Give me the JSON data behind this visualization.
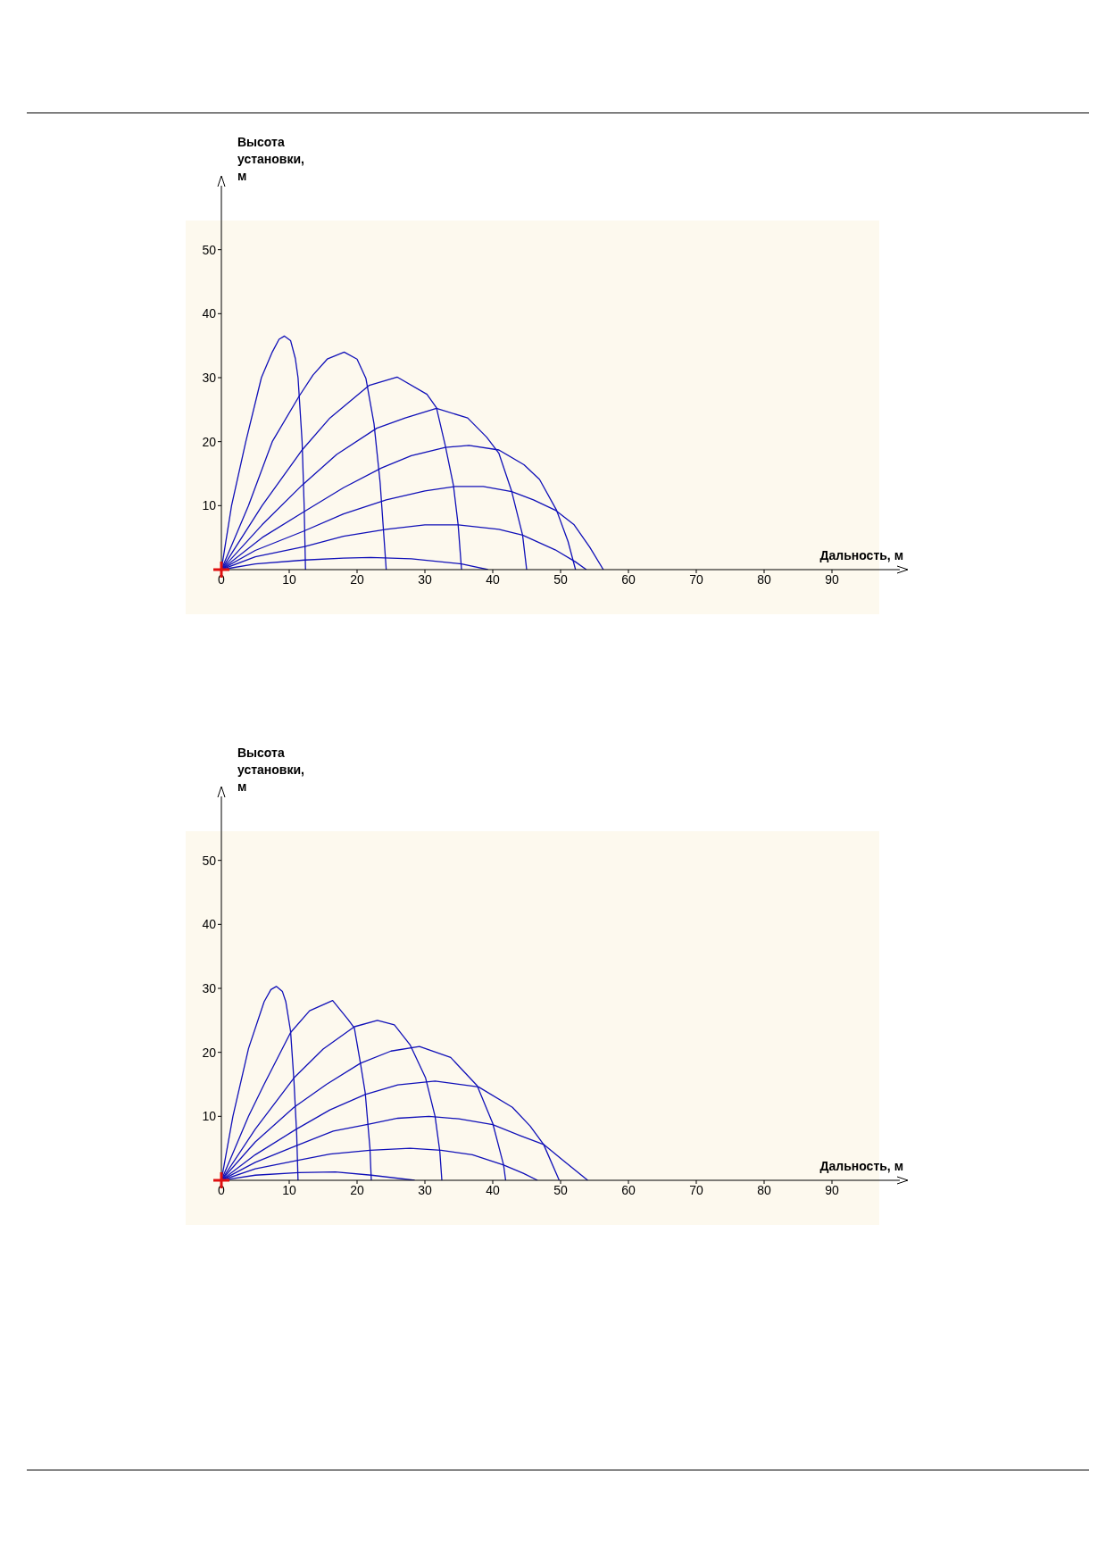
{
  "chart_data": [
    {
      "type": "line",
      "xlabel": "Дальность, м",
      "ylabel": "Высота установки, м",
      "xlim": [
        0,
        100
      ],
      "ylim": [
        0,
        60
      ],
      "xticks": [
        0,
        10,
        20,
        30,
        40,
        50,
        60,
        70,
        80,
        90
      ],
      "yticks": [
        10,
        20,
        30,
        40,
        50
      ],
      "series": [
        {
          "color": "#1010b8",
          "x": [
            0,
            1.5,
            3.6,
            5.9,
            7.5,
            8.5,
            9.3,
            10.2,
            10.9,
            11.3,
            11.9,
            12.2,
            12.4
          ],
          "values": [
            0,
            10,
            20,
            30,
            34,
            36,
            36.5,
            35.8,
            33,
            30,
            20,
            10,
            0
          ]
        },
        {
          "color": "#1010b8",
          "x": [
            0,
            4,
            7.5,
            11.4,
            13.5,
            15.6,
            18.1,
            20,
            21.3,
            22.5,
            23.4,
            24.3
          ],
          "values": [
            0,
            10,
            20,
            27,
            30.4,
            32.9,
            34,
            32.9,
            29.9,
            22.8,
            13.6,
            0
          ]
        },
        {
          "color": "#1010b8",
          "x": [
            0,
            6,
            11.9,
            16,
            21.8,
            25.9,
            30.3,
            31.7,
            33,
            34.2,
            34.9,
            35.4
          ],
          "values": [
            0,
            10,
            18.7,
            23.7,
            28.8,
            30.1,
            27.4,
            25.3,
            19.4,
            13.2,
            7,
            0
          ]
        },
        {
          "color": "#1010b8",
          "x": [
            0,
            6,
            11.9,
            17,
            22.9,
            27.1,
            31.7,
            36.3,
            39.1,
            40.9,
            42.8,
            44.4,
            45
          ],
          "values": [
            0,
            7,
            13.2,
            18,
            22.1,
            23.7,
            25.2,
            23.7,
            20.7,
            18.2,
            12.2,
            5.4,
            0
          ]
        },
        {
          "color": "#1010b8",
          "x": [
            0,
            6,
            12.1,
            18,
            23.6,
            28,
            33,
            36.5,
            40.9,
            44.6,
            46.9,
            49.4,
            51.1,
            52.2
          ],
          "values": [
            0,
            5,
            9,
            12.8,
            15.9,
            17.8,
            19.1,
            19.4,
            18.7,
            16.4,
            14.1,
            9.3,
            4.4,
            0
          ]
        },
        {
          "color": "#1010b8",
          "x": [
            0,
            5,
            12.1,
            18,
            24.3,
            30,
            34.5,
            38.6,
            42.8,
            46,
            49.2,
            52,
            54.3,
            56.3
          ],
          "values": [
            0,
            3,
            6,
            8.7,
            10.9,
            12.3,
            13,
            13,
            12.2,
            10.9,
            9.3,
            7,
            3.5,
            0
          ]
        },
        {
          "color": "#1010b8",
          "x": [
            0,
            5,
            12.3,
            18,
            24.3,
            30,
            34.9,
            40.9,
            44.4,
            49.2,
            52.2,
            53.8
          ],
          "values": [
            0,
            2,
            3.6,
            5.2,
            6.3,
            7,
            7,
            6.3,
            5.4,
            3.1,
            1.2,
            0
          ]
        },
        {
          "color": "#1010b8",
          "x": [
            0,
            5,
            12.3,
            18,
            22,
            28,
            35.4,
            39.3
          ],
          "values": [
            0,
            0.9,
            1.5,
            1.8,
            1.9,
            1.7,
            0.9,
            0
          ]
        }
      ]
    },
    {
      "type": "line",
      "xlabel": "Дальность, м",
      "ylabel": "Высота установки, м",
      "xlim": [
        0,
        100
      ],
      "ylim": [
        0,
        60
      ],
      "xticks": [
        0,
        10,
        20,
        30,
        40,
        50,
        60,
        70,
        80,
        90
      ],
      "yticks": [
        10,
        20,
        30,
        40,
        50
      ],
      "series": [
        {
          "color": "#1010b8",
          "x": [
            0,
            1.7,
            4,
            6.3,
            7.3,
            8.1,
            9,
            9.5,
            10.2,
            10.7,
            11.1,
            11.3
          ],
          "values": [
            0,
            10,
            20.6,
            27.9,
            29.8,
            30.3,
            29.5,
            27.9,
            23.3,
            15.5,
            7.2,
            0
          ]
        },
        {
          "color": "#1010b8",
          "x": [
            0,
            4,
            6.3,
            10.2,
            13,
            16.4,
            18.7,
            19.6,
            20.5,
            21.2,
            21.9,
            22.1
          ],
          "values": [
            0,
            10,
            15,
            23.1,
            26.5,
            28.1,
            25.1,
            23.8,
            18.3,
            13.7,
            5,
            0
          ]
        },
        {
          "color": "#1010b8",
          "x": [
            0,
            5,
            10.7,
            15,
            19.6,
            23,
            25.5,
            27.8,
            30.1,
            31.5,
            32.2,
            32.5
          ],
          "values": [
            0,
            8,
            16,
            20.5,
            24,
            25,
            24.3,
            21.2,
            16,
            10,
            4.5,
            0
          ]
        },
        {
          "color": "#1010b8",
          "x": [
            0,
            5,
            10.7,
            15.5,
            20.5,
            25,
            29.2,
            33.8,
            37.7,
            40,
            41.6,
            41.9
          ],
          "values": [
            0,
            6,
            11.4,
            15,
            18.3,
            20.2,
            20.9,
            19.2,
            14.8,
            8.9,
            2.4,
            0
          ]
        },
        {
          "color": "#1010b8",
          "x": [
            0,
            5,
            10.9,
            16,
            21.2,
            26,
            31.5,
            37.9,
            42.9,
            45.5,
            47.5,
            49.8
          ],
          "values": [
            0,
            4,
            7.9,
            11,
            13.4,
            14.9,
            15.5,
            14.6,
            11.4,
            8.5,
            5.6,
            0
          ]
        },
        {
          "color": "#1010b8",
          "x": [
            0,
            5,
            11,
            16.5,
            21.9,
            26,
            30.6,
            35,
            40,
            44,
            47.5,
            50.5,
            54
          ],
          "values": [
            0,
            2.8,
            5.4,
            7.7,
            8.8,
            9.7,
            10,
            9.6,
            8.7,
            7,
            5.6,
            3,
            0
          ]
        },
        {
          "color": "#1010b8",
          "x": [
            0,
            5,
            11.1,
            16,
            21.9,
            27.8,
            32.4,
            37,
            41.6,
            44.5,
            46.6
          ],
          "values": [
            0,
            1.8,
            3.1,
            4.1,
            4.7,
            5,
            4.7,
            4,
            2.4,
            1.1,
            0
          ]
        },
        {
          "color": "#1010b8",
          "x": [
            0,
            5,
            11.4,
            16.8,
            22.1,
            28.5
          ],
          "values": [
            0,
            0.8,
            1.2,
            1.3,
            0.8,
            0
          ]
        }
      ]
    }
  ]
}
